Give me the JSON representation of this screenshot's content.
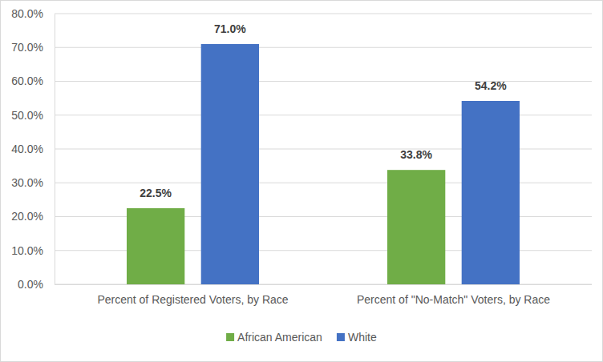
{
  "chart_data": {
    "type": "bar",
    "categories": [
      "Percent of Registered Voters, by Race",
      "Percent of \"No-Match\" Voters, by Race"
    ],
    "series": [
      {
        "name": "African American",
        "color": "#70ad47",
        "values": [
          22.5,
          33.8
        ],
        "value_labels": [
          "22.5%",
          "33.8%"
        ]
      },
      {
        "name": "White",
        "color": "#4472c4",
        "values": [
          71.0,
          54.2
        ],
        "value_labels": [
          "71.0%",
          "54.2%"
        ]
      }
    ],
    "ylim": [
      0,
      80
    ],
    "yticks": [
      {
        "value": 0,
        "label": "0.0%"
      },
      {
        "value": 10,
        "label": "10.0%"
      },
      {
        "value": 20,
        "label": "20.0%"
      },
      {
        "value": 30,
        "label": "30.0%"
      },
      {
        "value": 40,
        "label": "40.0%"
      },
      {
        "value": 50,
        "label": "50.0%"
      },
      {
        "value": 60,
        "label": "60.0%"
      },
      {
        "value": 70,
        "label": "70.0%"
      },
      {
        "value": 80,
        "label": "80.0%"
      }
    ],
    "grid": true,
    "legend": "bottom",
    "data_labels": true
  }
}
